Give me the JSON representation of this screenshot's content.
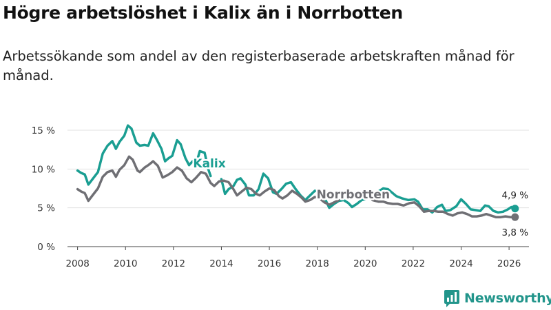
{
  "title": "Högre arbetslöshet i Kalix än i Norrbotten",
  "subtitle": "Arbetssökande som andel av den registerbaserade arbetskraften månad för månad.",
  "brand": {
    "name": "Newsworthy",
    "color": "#22958b"
  },
  "chart_data": {
    "type": "line",
    "title": "Högre arbetslöshet i Kalix än i Norrbotten",
    "subtitle": "Arbetssökande som andel av den registerbaserade arbetskraften månad för månad.",
    "xlabel": "",
    "ylabel": "",
    "xlim": [
      2007.58,
      2026.83
    ],
    "ylim": [
      0,
      15
    ],
    "y_ticks": [
      0,
      5,
      10,
      15
    ],
    "y_tick_labels": [
      "0 %",
      "5 %",
      "10 %",
      "15 %"
    ],
    "x_ticks": [
      2008,
      2010,
      2012,
      2014,
      2016,
      2018,
      2020,
      2022,
      2024,
      2026
    ],
    "x_tick_labels": [
      "2008",
      "2010",
      "2012",
      "2014",
      "2016",
      "2018",
      "2020",
      "2022",
      "2024",
      "2026"
    ],
    "grid": "horizontal",
    "series": [
      {
        "name": "Kalix",
        "color": "#1a9e92",
        "last_value_label": "4,9 %",
        "points": [
          [
            2008.0,
            9.8
          ],
          [
            2008.15,
            9.5
          ],
          [
            2008.3,
            9.3
          ],
          [
            2008.45,
            8.0
          ],
          [
            2008.65,
            8.8
          ],
          [
            2008.85,
            9.6
          ],
          [
            2009.05,
            12.0
          ],
          [
            2009.25,
            13.0
          ],
          [
            2009.45,
            13.6
          ],
          [
            2009.6,
            12.6
          ],
          [
            2009.75,
            13.5
          ],
          [
            2009.95,
            14.3
          ],
          [
            2010.1,
            15.6
          ],
          [
            2010.25,
            15.2
          ],
          [
            2010.45,
            13.4
          ],
          [
            2010.6,
            13.0
          ],
          [
            2010.8,
            13.1
          ],
          [
            2010.95,
            13.0
          ],
          [
            2011.15,
            14.6
          ],
          [
            2011.3,
            13.8
          ],
          [
            2011.5,
            12.6
          ],
          [
            2011.65,
            11.0
          ],
          [
            2011.8,
            11.4
          ],
          [
            2011.95,
            11.7
          ],
          [
            2012.15,
            13.7
          ],
          [
            2012.3,
            13.2
          ],
          [
            2012.5,
            11.4
          ],
          [
            2012.65,
            10.5
          ],
          [
            2012.8,
            11.0
          ],
          [
            2012.95,
            10.7
          ],
          [
            2013.1,
            12.3
          ],
          [
            2013.3,
            12.1
          ],
          [
            2013.45,
            10.0
          ],
          [
            2013.55,
            9.1
          ]
        ],
        "hidden_span_note": "Kalix line is occluded by the Norrbotten line where both are shown together",
        "points_late": [
          [
            2014.0,
            8.7
          ],
          [
            2014.15,
            6.8
          ],
          [
            2014.3,
            7.4
          ],
          [
            2014.5,
            7.8
          ],
          [
            2014.65,
            8.6
          ],
          [
            2014.8,
            8.8
          ],
          [
            2015.0,
            8.0
          ],
          [
            2015.15,
            6.6
          ],
          [
            2015.35,
            6.6
          ],
          [
            2015.55,
            7.4
          ],
          [
            2015.75,
            9.4
          ],
          [
            2015.95,
            8.8
          ],
          [
            2016.15,
            7.0
          ],
          [
            2016.3,
            6.8
          ],
          [
            2016.5,
            7.4
          ],
          [
            2016.7,
            8.1
          ],
          [
            2016.9,
            8.3
          ],
          [
            2017.1,
            7.4
          ],
          [
            2017.3,
            6.6
          ],
          [
            2017.5,
            6.0
          ],
          [
            2017.7,
            6.6
          ],
          [
            2017.9,
            7.2
          ],
          [
            2018.1,
            7.0
          ],
          [
            2018.3,
            6.3
          ],
          [
            2018.5,
            5.0
          ],
          [
            2018.7,
            5.5
          ],
          [
            2018.9,
            5.9
          ],
          [
            2019.1,
            6.0
          ],
          [
            2019.3,
            5.6
          ],
          [
            2019.45,
            5.1
          ],
          [
            2019.65,
            5.5
          ],
          [
            2019.85,
            6.0
          ],
          [
            2020.1,
            6.2
          ],
          [
            2020.3,
            6.6
          ],
          [
            2020.55,
            7.1
          ],
          [
            2020.75,
            7.5
          ],
          [
            2020.95,
            7.4
          ],
          [
            2021.1,
            7.0
          ],
          [
            2021.3,
            6.5
          ],
          [
            2021.55,
            6.2
          ],
          [
            2021.8,
            6.0
          ],
          [
            2022.05,
            6.1
          ],
          [
            2022.2,
            5.8
          ],
          [
            2022.4,
            4.8
          ],
          [
            2022.6,
            4.8
          ],
          [
            2022.8,
            4.4
          ],
          [
            2023.0,
            5.1
          ],
          [
            2023.2,
            5.4
          ],
          [
            2023.35,
            4.6
          ],
          [
            2023.55,
            4.7
          ],
          [
            2023.8,
            5.2
          ],
          [
            2024.0,
            6.1
          ],
          [
            2024.2,
            5.5
          ],
          [
            2024.4,
            4.8
          ],
          [
            2024.6,
            4.7
          ],
          [
            2024.8,
            4.6
          ],
          [
            2025.0,
            5.3
          ],
          [
            2025.15,
            5.2
          ],
          [
            2025.35,
            4.6
          ],
          [
            2025.55,
            4.4
          ],
          [
            2025.75,
            4.5
          ],
          [
            2025.95,
            4.8
          ],
          [
            2026.1,
            5.1
          ],
          [
            2026.25,
            4.9
          ]
        ]
      },
      {
        "name": "Norrbotten",
        "color": "#6f6f74",
        "last_value_label": "3,8 %",
        "points": [
          [
            2008.0,
            7.4
          ],
          [
            2008.15,
            7.1
          ],
          [
            2008.3,
            6.9
          ],
          [
            2008.45,
            5.9
          ],
          [
            2008.65,
            6.7
          ],
          [
            2008.85,
            7.5
          ],
          [
            2009.05,
            9.0
          ],
          [
            2009.25,
            9.6
          ],
          [
            2009.45,
            9.8
          ],
          [
            2009.6,
            9.0
          ],
          [
            2009.75,
            9.9
          ],
          [
            2009.95,
            10.5
          ],
          [
            2010.15,
            11.6
          ],
          [
            2010.3,
            11.2
          ],
          [
            2010.5,
            9.8
          ],
          [
            2010.6,
            9.6
          ],
          [
            2010.8,
            10.2
          ],
          [
            2010.95,
            10.5
          ],
          [
            2011.15,
            11.0
          ],
          [
            2011.35,
            10.4
          ],
          [
            2011.55,
            8.9
          ],
          [
            2011.75,
            9.2
          ],
          [
            2011.95,
            9.6
          ],
          [
            2012.15,
            10.2
          ],
          [
            2012.35,
            9.8
          ],
          [
            2012.55,
            8.8
          ],
          [
            2012.75,
            8.3
          ],
          [
            2012.95,
            8.9
          ],
          [
            2013.15,
            9.6
          ],
          [
            2013.35,
            9.4
          ],
          [
            2013.55,
            8.2
          ],
          [
            2013.7,
            7.8
          ],
          [
            2013.9,
            8.4
          ],
          [
            2014.1,
            8.5
          ],
          [
            2014.3,
            8.3
          ],
          [
            2014.5,
            7.4
          ],
          [
            2014.65,
            6.6
          ],
          [
            2014.85,
            7.1
          ],
          [
            2015.05,
            7.6
          ],
          [
            2015.25,
            7.4
          ],
          [
            2015.45,
            6.8
          ],
          [
            2015.6,
            6.6
          ],
          [
            2015.8,
            7.1
          ],
          [
            2016.0,
            7.5
          ],
          [
            2016.2,
            7.3
          ],
          [
            2016.4,
            6.5
          ],
          [
            2016.55,
            6.2
          ],
          [
            2016.75,
            6.6
          ],
          [
            2016.95,
            7.2
          ],
          [
            2017.15,
            6.8
          ],
          [
            2017.35,
            6.3
          ],
          [
            2017.5,
            5.8
          ],
          [
            2017.7,
            6.0
          ],
          [
            2017.9,
            6.4
          ],
          [
            2018.1,
            6.2
          ],
          [
            2018.3,
            5.7
          ],
          [
            2018.5,
            5.4
          ],
          [
            2018.7,
            5.7
          ],
          [
            2018.9,
            6.0
          ],
          [
            2019.1,
            5.8
          ],
          [
            2019.3,
            5.6
          ],
          [
            2019.5,
            5.5
          ],
          [
            2019.7,
            5.7
          ],
          [
            2019.9,
            5.9
          ],
          [
            2020.1,
            5.8
          ],
          [
            2020.3,
            6.0
          ],
          [
            2020.55,
            5.8
          ],
          [
            2020.75,
            5.8
          ],
          [
            2020.95,
            5.6
          ],
          [
            2021.15,
            5.5
          ],
          [
            2021.35,
            5.5
          ],
          [
            2021.6,
            5.3
          ],
          [
            2021.85,
            5.6
          ],
          [
            2022.05,
            5.7
          ],
          [
            2022.25,
            5.2
          ],
          [
            2022.45,
            4.5
          ],
          [
            2022.65,
            4.6
          ],
          [
            2022.85,
            4.6
          ],
          [
            2023.05,
            4.5
          ],
          [
            2023.25,
            4.5
          ],
          [
            2023.45,
            4.2
          ],
          [
            2023.65,
            4.0
          ],
          [
            2023.85,
            4.3
          ],
          [
            2024.05,
            4.4
          ],
          [
            2024.25,
            4.2
          ],
          [
            2024.45,
            3.9
          ],
          [
            2024.65,
            3.9
          ],
          [
            2024.85,
            4.0
          ],
          [
            2025.05,
            4.2
          ],
          [
            2025.25,
            4.0
          ],
          [
            2025.45,
            3.8
          ],
          [
            2025.65,
            3.8
          ],
          [
            2025.85,
            3.9
          ],
          [
            2026.05,
            3.8
          ],
          [
            2026.25,
            3.8
          ]
        ]
      }
    ],
    "annotations": [
      {
        "text": "Kalix",
        "series": "Kalix",
        "at_year": 2013.5,
        "at_value": 10.2
      },
      {
        "text": "Norrbotten",
        "series": "Norrbotten",
        "at_year": 2019.5,
        "at_value": 6.2
      },
      {
        "text": "4,9 %",
        "series": "Kalix",
        "at_year": 2026.25,
        "at_value": 4.9,
        "placement": "above"
      },
      {
        "text": "3,8 %",
        "series": "Norrbotten",
        "at_year": 2026.25,
        "at_value": 3.8,
        "placement": "below"
      }
    ]
  }
}
